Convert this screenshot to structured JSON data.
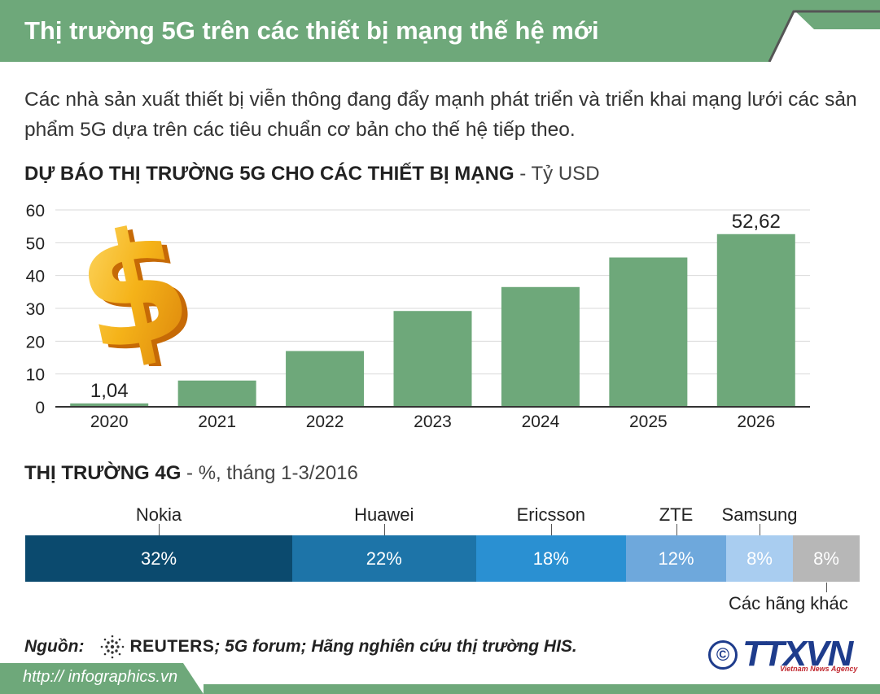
{
  "header": {
    "title": "Thị trường 5G trên các thiết bị mạng thế hệ mới"
  },
  "intro": {
    "text": "Các nhà sản xuất thiết bị viễn thông đang đẩy mạnh phát triển và triển khai mạng lưới các sản phẩm 5G dựa trên các tiêu chuẩn cơ bản cho thế hệ tiếp theo."
  },
  "section_5g": {
    "title_bold": "DỰ BÁO THỊ TRƯỜNG 5G CHO CÁC THIẾT BỊ MẠNG",
    "title_unit": " - Tỷ USD"
  },
  "section_4g": {
    "title_bold": "THỊ TRƯỜNG 4G",
    "title_unit": " - %, tháng 1-3/2016"
  },
  "chart_data": [
    {
      "type": "bar",
      "title": "DỰ BÁO THỊ TRƯỜNG 5G CHO CÁC THIẾT BỊ MẠNG - Tỷ USD",
      "categories": [
        "2020",
        "2021",
        "2022",
        "2023",
        "2024",
        "2025",
        "2026"
      ],
      "values": [
        1.04,
        8,
        17,
        29.2,
        36.5,
        45.5,
        52.62
      ],
      "data_labels": {
        "2020": "1,04",
        "2026": "52,62"
      },
      "yticks": [
        0,
        10,
        20,
        30,
        40,
        50,
        60
      ],
      "ylim": [
        0,
        60
      ],
      "grid": true,
      "xlabel": "",
      "ylabel": "",
      "bar_color": "#6ea87a"
    },
    {
      "type": "bar",
      "orientation": "horizontal-stacked",
      "title": "THỊ TRƯỜNG 4G - %, tháng 1-3/2016",
      "categories": [
        "Nokia",
        "Huawei",
        "Ericsson",
        "ZTE",
        "Samsung",
        "Các hãng khác"
      ],
      "values": [
        32,
        22,
        18,
        12,
        8,
        8
      ],
      "value_labels": [
        "32%",
        "22%",
        "18%",
        "12%",
        "8%",
        "8%"
      ],
      "colors": [
        "#0b4a6e",
        "#1d74a8",
        "#2a90d2",
        "#6ea8dc",
        "#a9cdf0",
        "#b7b7b7"
      ]
    }
  ],
  "source": {
    "label": "Nguồn:",
    "reuters": "REUTERS",
    "rest": " ; 5G forum; Hãng nghiên cứu thị trường HIS."
  },
  "footer": {
    "url": "http:// infographics.vn"
  },
  "logo": {
    "copyright": "©",
    "brand": "TTXVN",
    "tagline": "Vietnam News Agency"
  },
  "colors": {
    "theme_green": "#6ea87a",
    "header_green": "#6ea87a",
    "brand_blue": "#1e3c8c",
    "brand_red": "#c0262d"
  }
}
